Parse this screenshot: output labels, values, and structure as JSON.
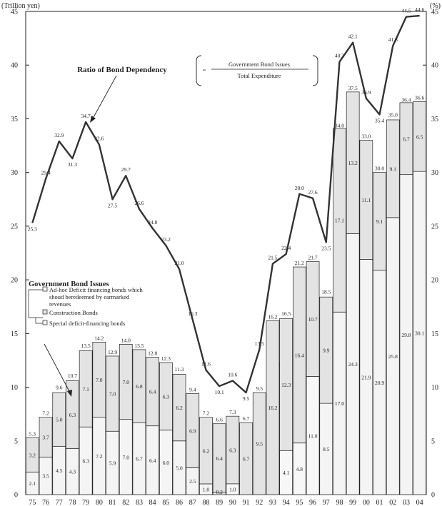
{
  "chart_data": {
    "type": "bar",
    "stacked": true,
    "categories": [
      "75",
      "76",
      "77",
      "78",
      "79",
      "80",
      "81",
      "82",
      "83",
      "84",
      "85",
      "86",
      "87",
      "88",
      "89",
      "90",
      "91",
      "92",
      "93",
      "94",
      "95",
      "96",
      "97",
      "98",
      "99",
      "00",
      "01",
      "02",
      "03",
      "04"
    ],
    "left_axis": {
      "label": "(Trillion yen)",
      "ylim": [
        0,
        45
      ],
      "ticks": [
        0,
        5,
        10,
        15,
        20,
        25,
        30,
        35,
        40,
        45
      ]
    },
    "right_axis": {
      "label": "(%)",
      "ylim": [
        0,
        45
      ],
      "ticks": [
        0,
        5,
        10,
        15,
        20,
        25,
        30,
        35,
        40,
        45
      ]
    },
    "bar_series": [
      {
        "name": "Special deficit-financing bonds",
        "values": [
          2.1,
          3.5,
          4.5,
          4.3,
          6.3,
          7.2,
          5.9,
          7.0,
          6.7,
          6.4,
          6.0,
          5.0,
          2.5,
          1.0,
          0.2,
          null,
          null,
          null,
          null,
          null,
          null,
          null,
          8.5,
          17.0,
          24.3,
          21.9,
          20.9,
          25.8,
          29.8,
          30.1
        ]
      },
      {
        "name": "Construction Bonds",
        "values": [
          3.2,
          3.7,
          5.0,
          6.3,
          7.1,
          7.0,
          7.0,
          7.0,
          6.8,
          6.4,
          6.3,
          6.2,
          6.9,
          6.2,
          6.4,
          6.3,
          6.7,
          9.5,
          16.2,
          12.3,
          16.4,
          10.7,
          9.9,
          17.1,
          13.2,
          11.1,
          9.1,
          9.1,
          6.7,
          6.5
        ]
      },
      {
        "name": "Ad-hoc Deficit financing bonds which shoud beredeemed by earmarked revenues",
        "values": [
          null,
          null,
          null,
          null,
          null,
          null,
          null,
          null,
          null,
          null,
          null,
          null,
          null,
          null,
          null,
          1.0,
          null,
          null,
          null,
          4.1,
          4.8,
          11.0,
          null,
          null,
          null,
          null,
          null,
          null,
          null,
          null
        ]
      }
    ],
    "bar_totals": [
      5.3,
      7.2,
      9.6,
      10.7,
      13.5,
      14.2,
      12.9,
      14.0,
      13.5,
      12.8,
      12.3,
      11.3,
      9.4,
      7.2,
      6.6,
      7.3,
      6.7,
      9.5,
      16.2,
      16.5,
      21.2,
      21.7,
      18.5,
      34.0,
      37.5,
      33.0,
      30.0,
      35.0,
      36.4,
      36.6
    ],
    "line_series": {
      "name": "Ratio of Bond Dependency",
      "axis": "right",
      "values": [
        25.3,
        29.4,
        32.9,
        31.3,
        34.7,
        32.6,
        27.5,
        29.7,
        26.6,
        24.8,
        23.2,
        21.0,
        16.3,
        11.6,
        10.1,
        10.6,
        9.5,
        13.5,
        21.5,
        22.4,
        28.0,
        27.6,
        23.5,
        40.3,
        42.1,
        36.9,
        35.4,
        41.8,
        44.5,
        44.6
      ]
    },
    "formula": {
      "prefix": "=",
      "numerator": "Government Bond Issues",
      "denominator": "Total Expenditure"
    },
    "legend": {
      "title": "Government Bond Issues",
      "items": [
        {
          "lines": [
            "Ad-hoc Deficit financing bonds which",
            "shoud beredeemed by earmarked",
            "revenues"
          ]
        },
        {
          "lines": [
            "Construction Bonds"
          ]
        },
        {
          "lines": [
            "Special deficit-financing bonds"
          ]
        }
      ],
      "placement": "middle-left"
    },
    "colors": {
      "special": "#f4f4f4",
      "construction": "#e3e3e3",
      "adhoc": "#f7f7f7",
      "line": "#333333",
      "stroke": "#222222"
    },
    "grid": false
  }
}
